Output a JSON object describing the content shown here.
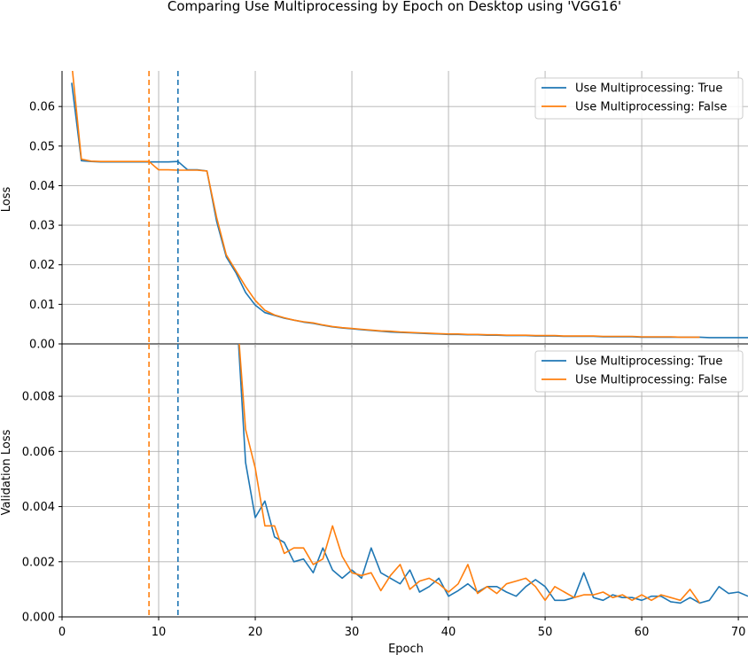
{
  "figure": {
    "title": "Comparing Use Multiprocessing by Epoch on Desktop using 'VGG16'"
  },
  "colors": {
    "true": "#1f77b4",
    "false": "#ff7f0e",
    "grid": "#b0b0b0"
  },
  "chart_data": [
    {
      "type": "line",
      "ylabel": "Loss",
      "xlabel": "",
      "xlim": [
        0,
        71
      ],
      "ylim": [
        0,
        0.069
      ],
      "grid": true,
      "legend_position": "top-right",
      "xticks": [
        0,
        10,
        20,
        30,
        40,
        50,
        60,
        70
      ],
      "yticks": [
        0.0,
        0.01,
        0.02,
        0.03,
        0.04,
        0.05,
        0.06
      ],
      "ytick_labels": [
        "0.00",
        "0.01",
        "0.02",
        "0.03",
        "0.04",
        "0.05",
        "0.06"
      ],
      "vlines": [
        {
          "series": "Use Multiprocessing: False",
          "x": 9,
          "style": "dashed"
        },
        {
          "series": "Use Multiprocessing: True",
          "x": 12,
          "style": "dashed"
        }
      ],
      "series": [
        {
          "name": "Use Multiprocessing: True",
          "color": "#1f77b4",
          "x": [
            1,
            2,
            3,
            4,
            5,
            6,
            7,
            8,
            9,
            10,
            11,
            12,
            13,
            14,
            15,
            16,
            17,
            18,
            19,
            20,
            21,
            22,
            23,
            24,
            25,
            26,
            27,
            28,
            29,
            30,
            31,
            32,
            33,
            34,
            35,
            36,
            37,
            38,
            39,
            40,
            41,
            42,
            43,
            44,
            45,
            46,
            47,
            48,
            49,
            50,
            51,
            52,
            53,
            54,
            55,
            56,
            57,
            58,
            59,
            60,
            61,
            62,
            63,
            64,
            65,
            66,
            67,
            68,
            69,
            70,
            71
          ],
          "y": [
            0.066,
            0.0463,
            0.0461,
            0.046,
            0.046,
            0.046,
            0.046,
            0.046,
            0.046,
            0.046,
            0.046,
            0.0461,
            0.044,
            0.044,
            0.0437,
            0.031,
            0.022,
            0.018,
            0.013,
            0.0098,
            0.0079,
            0.0072,
            0.0065,
            0.006,
            0.0055,
            0.0052,
            0.0047,
            0.0043,
            0.004,
            0.0038,
            0.0036,
            0.0034,
            0.0032,
            0.003,
            0.0029,
            0.0028,
            0.0027,
            0.0026,
            0.0025,
            0.0024,
            0.0024,
            0.0023,
            0.0023,
            0.0022,
            0.0022,
            0.0021,
            0.0021,
            0.0021,
            0.002,
            0.002,
            0.002,
            0.0019,
            0.0019,
            0.0019,
            0.0019,
            0.0018,
            0.0018,
            0.0018,
            0.0018,
            0.0017,
            0.0017,
            0.0017,
            0.0017,
            0.0017,
            0.0017,
            0.0017,
            0.0016,
            0.0016,
            0.0016,
            0.0016,
            0.0016
          ]
        },
        {
          "name": "Use Multiprocessing: False",
          "color": "#ff7f0e",
          "x": [
            1,
            2,
            3,
            4,
            5,
            6,
            7,
            8,
            9,
            10,
            11,
            12,
            13,
            14,
            15,
            16,
            17,
            18,
            19,
            20,
            21,
            22,
            23,
            24,
            25,
            26,
            27,
            28,
            29,
            30,
            31,
            32,
            33,
            34,
            35,
            36,
            37,
            38,
            39,
            40,
            41,
            42,
            43,
            44,
            45,
            46,
            47,
            48,
            49,
            50,
            51,
            52,
            53,
            54,
            55,
            56,
            57,
            58,
            59,
            60,
            61,
            62,
            63,
            64,
            65,
            66
          ],
          "y": [
            0.071,
            0.0467,
            0.0462,
            0.0461,
            0.0461,
            0.0461,
            0.0461,
            0.0461,
            0.0461,
            0.044,
            0.044,
            0.0439,
            0.0439,
            0.0439,
            0.0437,
            0.032,
            0.0225,
            0.0185,
            0.0145,
            0.011,
            0.0085,
            0.0073,
            0.0066,
            0.006,
            0.0056,
            0.0053,
            0.0048,
            0.0044,
            0.0041,
            0.0039,
            0.0037,
            0.0035,
            0.0033,
            0.0032,
            0.003,
            0.0029,
            0.0028,
            0.0027,
            0.0026,
            0.0025,
            0.0025,
            0.0024,
            0.0024,
            0.0023,
            0.0023,
            0.0022,
            0.0022,
            0.0022,
            0.0021,
            0.0021,
            0.0021,
            0.002,
            0.002,
            0.002,
            0.002,
            0.0019,
            0.0019,
            0.0019,
            0.0019,
            0.0018,
            0.0018,
            0.0018,
            0.0018,
            0.0017,
            0.0017,
            0.0017
          ]
        }
      ]
    },
    {
      "type": "line",
      "ylabel": "Validation Loss",
      "xlabel": "Epoch",
      "xlim": [
        0,
        71
      ],
      "ylim": [
        0,
        0.0099
      ],
      "grid": true,
      "legend_position": "top-right",
      "xticks": [
        0,
        10,
        20,
        30,
        40,
        50,
        60,
        70
      ],
      "yticks": [
        0.0,
        0.002,
        0.004,
        0.006,
        0.008
      ],
      "ytick_labels": [
        "0.000",
        "0.002",
        "0.004",
        "0.006",
        "0.008"
      ],
      "vlines": [
        {
          "series": "Use Multiprocessing: False",
          "x": 9,
          "style": "dashed"
        },
        {
          "series": "Use Multiprocessing: True",
          "x": 12,
          "style": "dashed"
        }
      ],
      "series": [
        {
          "name": "Use Multiprocessing: True",
          "color": "#1f77b4",
          "x": [
            18,
            19,
            20,
            21,
            22,
            23,
            24,
            25,
            26,
            27,
            28,
            29,
            30,
            31,
            32,
            33,
            34,
            35,
            36,
            37,
            38,
            39,
            40,
            41,
            42,
            43,
            44,
            45,
            46,
            47,
            48,
            49,
            50,
            51,
            52,
            53,
            54,
            55,
            56,
            57,
            58,
            59,
            60,
            61,
            62,
            63,
            64,
            65,
            66,
            67,
            68,
            69,
            70,
            71
          ],
          "y": [
            0.0115,
            0.0056,
            0.0036,
            0.0042,
            0.0029,
            0.0027,
            0.002,
            0.0021,
            0.0016,
            0.0025,
            0.0017,
            0.0014,
            0.0017,
            0.0014,
            0.0025,
            0.0016,
            0.0014,
            0.0012,
            0.0017,
            0.0009,
            0.0011,
            0.0014,
            0.00075,
            0.00095,
            0.0012,
            0.0009,
            0.0011,
            0.0011,
            0.0009,
            0.00075,
            0.0011,
            0.00135,
            0.0011,
            0.0006,
            0.0006,
            0.0007,
            0.0016,
            0.0007,
            0.0006,
            0.0008,
            0.0007,
            0.0007,
            0.0006,
            0.00075,
            0.00075,
            0.00055,
            0.0005,
            0.0007,
            0.0005,
            0.0006,
            0.0011,
            0.00085,
            0.0009,
            0.00075
          ]
        },
        {
          "name": "Use Multiprocessing: False",
          "color": "#ff7f0e",
          "x": [
            18,
            19,
            20,
            21,
            22,
            23,
            24,
            25,
            26,
            27,
            28,
            29,
            30,
            31,
            32,
            33,
            34,
            35,
            36,
            37,
            38,
            39,
            40,
            41,
            42,
            43,
            44,
            45,
            46,
            47,
            48,
            49,
            50,
            51,
            52,
            53,
            54,
            55,
            56,
            57,
            58,
            59,
            60,
            61,
            62,
            63,
            64,
            65,
            66
          ],
          "y": [
            0.0115,
            0.0068,
            0.0054,
            0.0033,
            0.0033,
            0.0023,
            0.0025,
            0.0025,
            0.0019,
            0.0021,
            0.0033,
            0.0022,
            0.0016,
            0.0015,
            0.0016,
            0.00095,
            0.0015,
            0.0019,
            0.001,
            0.0013,
            0.0014,
            0.0012,
            0.0009,
            0.0012,
            0.0019,
            0.00085,
            0.0011,
            0.00085,
            0.0012,
            0.0013,
            0.0014,
            0.0011,
            0.0006,
            0.0011,
            0.0009,
            0.0007,
            0.0008,
            0.0008,
            0.0009,
            0.0007,
            0.0008,
            0.0006,
            0.0008,
            0.0006,
            0.0008,
            0.0007,
            0.0006,
            0.001,
            0.0005
          ]
        }
      ]
    }
  ]
}
